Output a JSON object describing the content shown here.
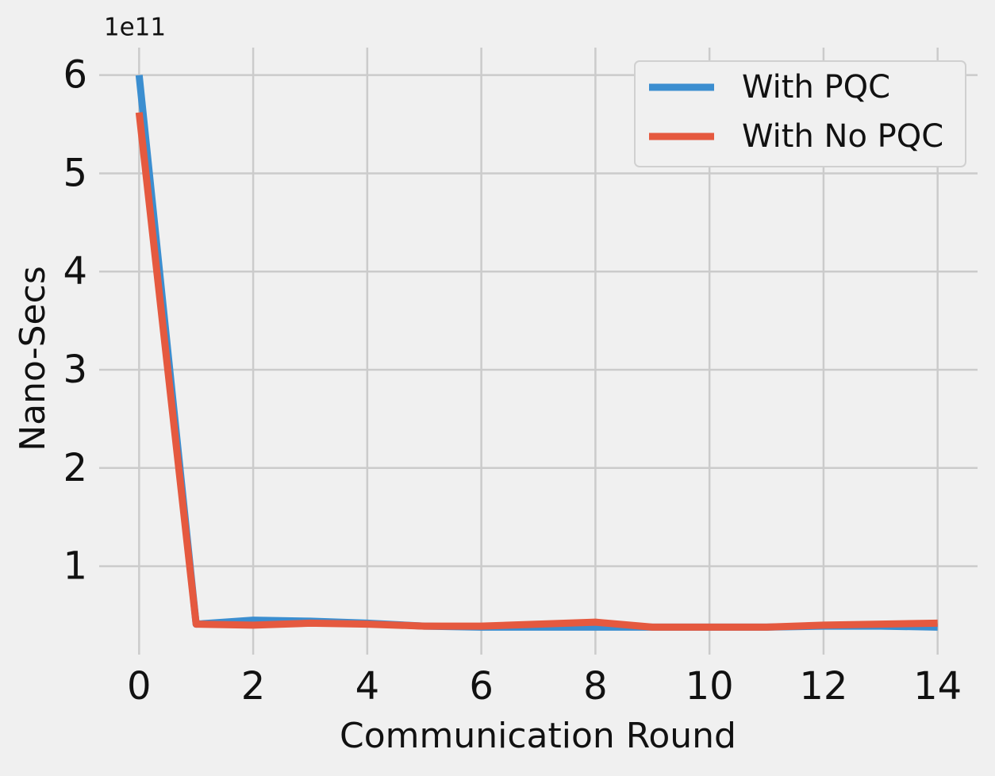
{
  "chart_data": {
    "type": "line",
    "x_label": "Communication Round",
    "y_label": "Nano-Secs",
    "y_offset_label": "1e11",
    "x": [
      0,
      1,
      2,
      3,
      4,
      5,
      6,
      7,
      8,
      9,
      10,
      11,
      12,
      13,
      14
    ],
    "series": [
      {
        "name": "With PQC",
        "color": "#3b8ed0",
        "values": [
          6.0,
          0.41,
          0.45,
          0.44,
          0.42,
          0.39,
          0.38,
          0.38,
          0.38,
          0.38,
          0.38,
          0.38,
          0.39,
          0.39,
          0.38
        ]
      },
      {
        "name": "With No PQC",
        "color": "#e5593f",
        "values": [
          5.62,
          0.41,
          0.4,
          0.42,
          0.41,
          0.39,
          0.39,
          0.41,
          0.43,
          0.38,
          0.38,
          0.38,
          0.4,
          0.41,
          0.42
        ]
      }
    ],
    "xlim": [
      -0.7,
      14.7
    ],
    "ylim": [
      0.1,
      6.28
    ],
    "xticks": [
      0,
      2,
      4,
      6,
      8,
      10,
      12,
      14
    ],
    "yticks": [
      1,
      2,
      3,
      4,
      5,
      6
    ],
    "grid": true,
    "legend_position": "upper-right"
  }
}
